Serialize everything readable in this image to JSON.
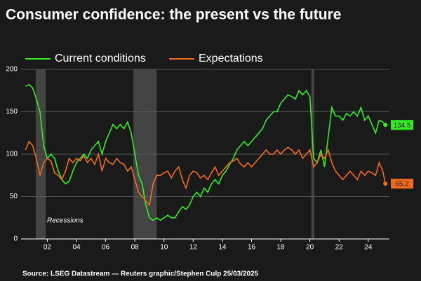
{
  "chart_data": {
    "type": "line",
    "title": "Consumer confidence: the present vs the future",
    "source": "Source: LSEG Datastream — Reuters graphic/Stephen Culp 25/03/2025",
    "recession_label": "Recessions",
    "recessions": [
      [
        2001.2,
        2001.9
      ],
      [
        2007.9,
        2009.5
      ],
      [
        2020.1,
        2020.3
      ]
    ],
    "recession_color": "#444444",
    "x": [
      2000.5,
      2000.75,
      2001,
      2001.25,
      2001.5,
      2001.75,
      2002,
      2002.25,
      2002.5,
      2002.75,
      2003,
      2003.25,
      2003.5,
      2003.75,
      2004,
      2004.25,
      2004.5,
      2004.75,
      2005,
      2005.25,
      2005.5,
      2005.75,
      2006,
      2006.25,
      2006.5,
      2006.75,
      2007,
      2007.25,
      2007.5,
      2007.75,
      2008,
      2008.25,
      2008.5,
      2008.75,
      2009,
      2009.25,
      2009.5,
      2009.75,
      2010,
      2010.25,
      2010.5,
      2010.75,
      2011,
      2011.25,
      2011.5,
      2011.75,
      2012,
      2012.25,
      2012.5,
      2012.75,
      2013,
      2013.25,
      2013.5,
      2013.75,
      2014,
      2014.25,
      2014.5,
      2014.75,
      2015,
      2015.25,
      2015.5,
      2015.75,
      2016,
      2016.25,
      2016.5,
      2016.75,
      2017,
      2017.25,
      2017.5,
      2017.75,
      2018,
      2018.25,
      2018.5,
      2018.75,
      2019,
      2019.25,
      2019.5,
      2019.75,
      2020,
      2020.25,
      2020.5,
      2020.75,
      2021,
      2021.25,
      2021.5,
      2021.75,
      2022,
      2022.25,
      2022.5,
      2022.75,
      2023,
      2023.25,
      2023.5,
      2023.75,
      2024,
      2024.25,
      2024.5,
      2024.75,
      2025,
      2025.17
    ],
    "series": [
      {
        "name": "Current conditions",
        "color": "#33ee22",
        "values": [
          180,
          182,
          178,
          165,
          150,
          110,
          95,
          100,
          95,
          80,
          70,
          65,
          68,
          80,
          90,
          95,
          100,
          95,
          105,
          110,
          115,
          100,
          115,
          125,
          135,
          130,
          135,
          130,
          138,
          125,
          100,
          75,
          65,
          40,
          25,
          22,
          25,
          22,
          25,
          28,
          25,
          25,
          32,
          38,
          35,
          40,
          50,
          55,
          50,
          60,
          55,
          65,
          70,
          65,
          75,
          80,
          88,
          95,
          105,
          110,
          115,
          110,
          115,
          120,
          125,
          130,
          140,
          145,
          150,
          150,
          160,
          165,
          170,
          168,
          165,
          175,
          170,
          175,
          168,
          95,
          90,
          105,
          85,
          120,
          155,
          145,
          145,
          140,
          148,
          145,
          150,
          145,
          155,
          140,
          145,
          135,
          125,
          140,
          138,
          134.5
        ]
      },
      {
        "name": "Expectations",
        "color": "#f26b1d",
        "values": [
          105,
          115,
          110,
          95,
          75,
          90,
          95,
          92,
          78,
          75,
          70,
          80,
          95,
          90,
          95,
          92,
          98,
          90,
          95,
          88,
          100,
          80,
          95,
          90,
          88,
          95,
          90,
          88,
          80,
          85,
          70,
          55,
          50,
          45,
          40,
          65,
          75,
          75,
          78,
          80,
          72,
          80,
          85,
          70,
          60,
          75,
          80,
          78,
          72,
          75,
          70,
          78,
          85,
          75,
          80,
          85,
          90,
          92,
          95,
          88,
          85,
          90,
          85,
          90,
          95,
          100,
          105,
          100,
          100,
          105,
          100,
          105,
          108,
          105,
          100,
          105,
          95,
          100,
          105,
          85,
          90,
          100,
          95,
          105,
          90,
          80,
          75,
          70,
          75,
          80,
          75,
          70,
          80,
          75,
          80,
          78,
          75,
          90,
          80,
          65.2
        ]
      }
    ],
    "xlim": [
      2000.2,
      2025.45
    ],
    "xticks": [
      {
        "value": 2002,
        "label": "02"
      },
      {
        "value": 2004,
        "label": "04"
      },
      {
        "value": 2006,
        "label": "06"
      },
      {
        "value": 2008,
        "label": "08"
      },
      {
        "value": 2010,
        "label": "10"
      },
      {
        "value": 2012,
        "label": "12"
      },
      {
        "value": 2014,
        "label": "14"
      },
      {
        "value": 2016,
        "label": "16"
      },
      {
        "value": 2018,
        "label": "18"
      },
      {
        "value": 2020,
        "label": "20"
      },
      {
        "value": 2022,
        "label": "22"
      },
      {
        "value": 2024,
        "label": "24"
      }
    ],
    "ylim": [
      0,
      200
    ],
    "yticks": [
      0,
      50,
      100,
      150,
      200
    ],
    "grid": true,
    "legend": "top-left"
  }
}
